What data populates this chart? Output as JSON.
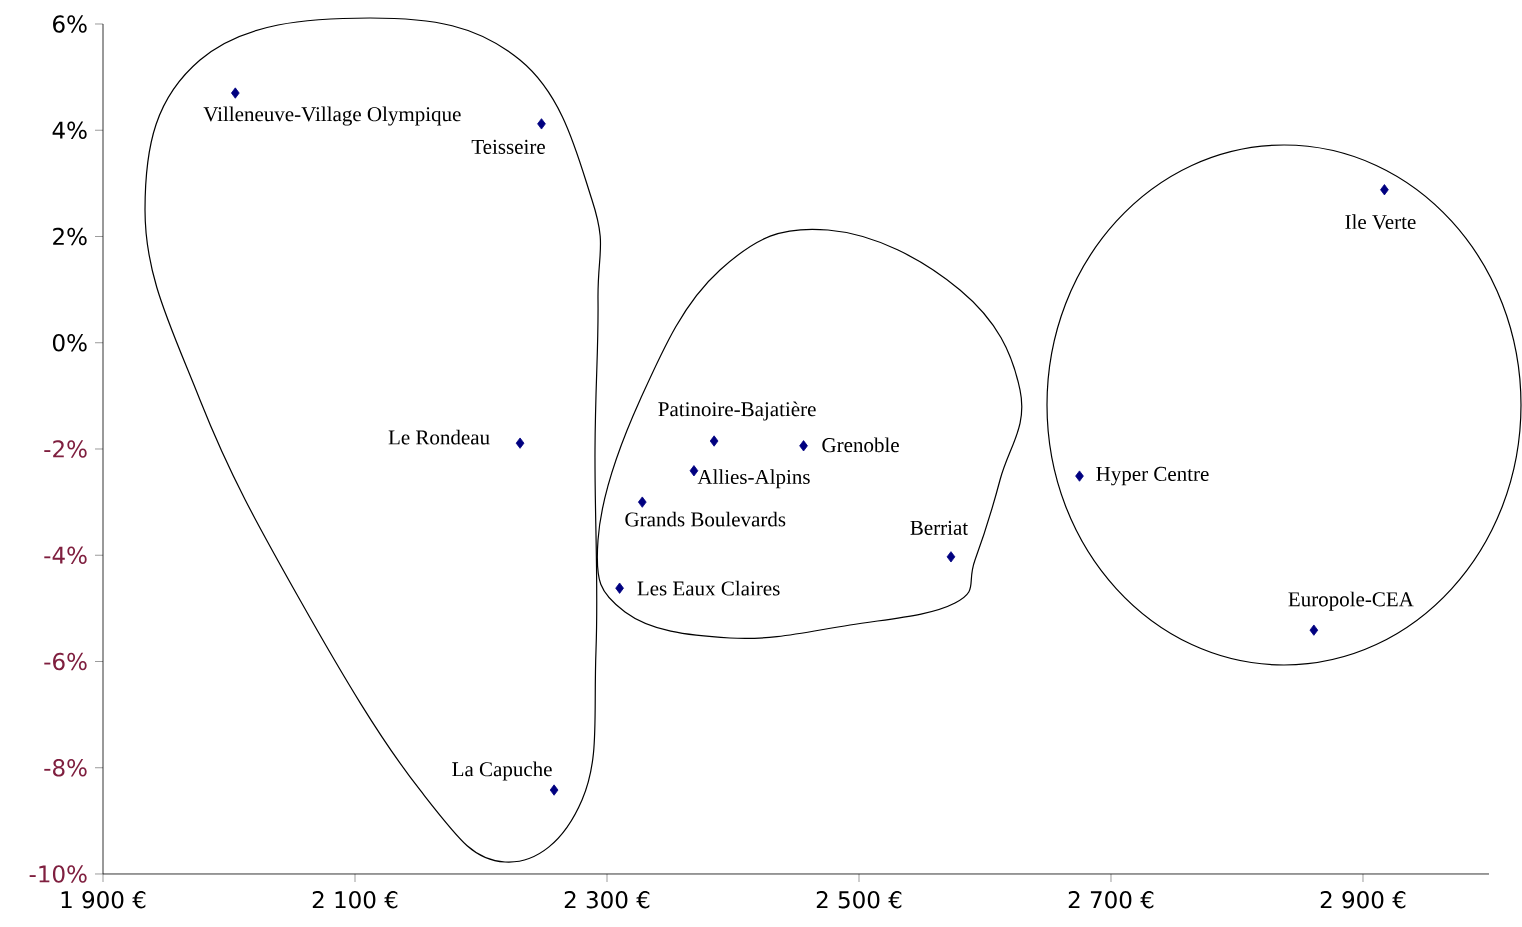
{
  "chart_data": {
    "type": "scatter",
    "marker": "diamond",
    "series": [
      {
        "color": "#000080",
        "x": [
          2005,
          2248,
          2231,
          2258,
          2385,
          2456,
          2369,
          2328,
          2310,
          2573,
          2675,
          2917,
          2861
        ],
        "values": [
          4.7,
          4.12,
          -1.89,
          -8.42,
          -1.85,
          -1.94,
          -2.41,
          -3.0,
          -4.62,
          -4.03,
          -2.51,
          2.88,
          -5.41
        ]
      }
    ],
    "annotations": [
      {
        "text": "Villeneuve-Village Olympique",
        "x": 2005,
        "y": 4.7
      },
      {
        "text": "Teisseire",
        "x": 2248,
        "y": 4.12
      },
      {
        "text": "Le Rondeau",
        "x": 2231,
        "y": -1.89
      },
      {
        "text": "La Capuche",
        "x": 2258,
        "y": -8.42
      },
      {
        "text": "Patinoire-Bajatière",
        "x": 2385,
        "y": -1.85
      },
      {
        "text": "Grenoble",
        "x": 2456,
        "y": -1.94
      },
      {
        "text": "Allies-Alpins",
        "x": 2369,
        "y": -2.41
      },
      {
        "text": "Grands Boulevards",
        "x": 2328,
        "y": -3.0
      },
      {
        "text": "Les Eaux Claires",
        "x": 2310,
        "y": -4.62
      },
      {
        "text": "Berriat",
        "x": 2573,
        "y": -4.03
      },
      {
        "text": "Hyper Centre",
        "x": 2675,
        "y": -2.51
      },
      {
        "text": "Ile Verte",
        "x": 2917,
        "y": 2.88
      },
      {
        "text": "Europole-CEA",
        "x": 2861,
        "y": -5.41
      }
    ],
    "xlim": [
      1900,
      3000
    ],
    "xticks": [
      {
        "value": 1900,
        "label": "1 900 €"
      },
      {
        "value": 2100,
        "label": "2 100 €"
      },
      {
        "value": 2300,
        "label": "2 300 €"
      },
      {
        "value": 2500,
        "label": "2 500 €"
      },
      {
        "value": 2700,
        "label": "2 700 €"
      },
      {
        "value": 2900,
        "label": "2 900 €"
      }
    ],
    "ylim": [
      -10,
      6
    ],
    "yticks": [
      {
        "value": 6,
        "label": "6%"
      },
      {
        "value": 4,
        "label": "4%"
      },
      {
        "value": 2,
        "label": "2%"
      },
      {
        "value": 0,
        "label": "0%"
      },
      {
        "value": -2,
        "label": "-2%"
      },
      {
        "value": -4,
        "label": "-4%"
      },
      {
        "value": -6,
        "label": "-6%"
      },
      {
        "value": -8,
        "label": "-8%"
      },
      {
        "value": -10,
        "label": "-10%"
      }
    ],
    "line_style": "none"
  }
}
